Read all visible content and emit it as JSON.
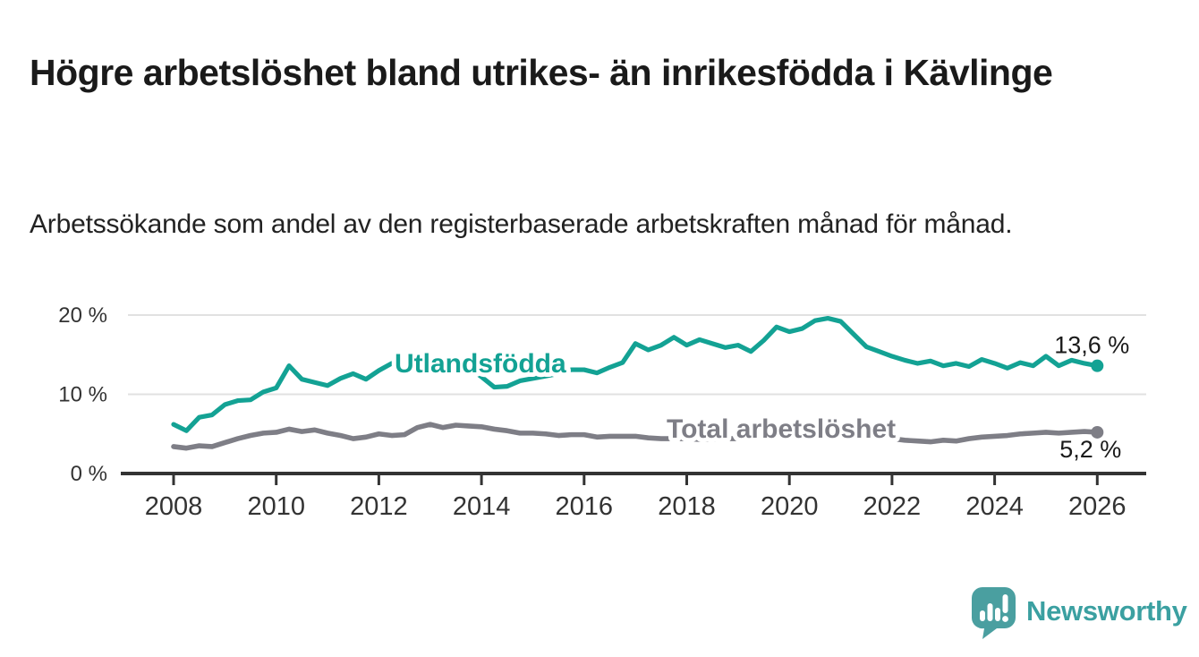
{
  "header": {
    "title": "Högre arbetslöshet bland utrikes- än inrikesfödda i Kävlinge",
    "subtitle": "Arbetssökande som andel av den registerbaserade arbetskraften månad för månad."
  },
  "chart_data": {
    "type": "line",
    "title": "Högre arbetslöshet bland utrikes- än inrikesfödda i Kävlinge",
    "subtitle": "Arbetssökande som andel av den registerbaserade arbetskraften månad för månad.",
    "unit_suffix": " %",
    "x_axis": {
      "ticks": [
        2008,
        2010,
        2012,
        2014,
        2016,
        2018,
        2020,
        2022,
        2024,
        2026
      ]
    },
    "y_axis": {
      "ticks": [
        {
          "value": 0,
          "label": "0 %"
        },
        {
          "value": 10,
          "label": "10 %"
        },
        {
          "value": 20,
          "label": "20 %"
        }
      ]
    },
    "xlim": [
      2007.05,
      2027.0
    ],
    "ylim": [
      0,
      21.3
    ],
    "grid": true,
    "legend_position": "inline-labels",
    "series": [
      {
        "name": "Total arbetslöshet",
        "color": "#7e7e86",
        "end_label": "5,2 %",
        "end_value": 5.2,
        "x_start": 2008,
        "x_step": 0.25,
        "values": [
          3.4,
          3.2,
          3.5,
          3.4,
          3.9,
          4.4,
          4.8,
          5.1,
          5.2,
          5.6,
          5.3,
          5.5,
          5.1,
          4.8,
          4.4,
          4.6,
          5.0,
          4.8,
          4.9,
          5.8,
          6.2,
          5.8,
          6.1,
          6.0,
          5.9,
          5.6,
          5.4,
          5.1,
          5.1,
          5.0,
          4.8,
          4.9,
          4.9,
          4.6,
          4.7,
          4.7,
          4.7,
          4.5,
          4.4,
          4.4,
          4.4,
          4.3,
          4.3,
          4.4,
          4.4,
          4.5,
          4.6,
          4.7,
          4.9,
          5.6,
          5.8,
          5.6,
          5.4,
          5.2,
          4.9,
          4.7,
          4.4,
          4.2,
          4.1,
          4.0,
          4.2,
          4.1,
          4.4,
          4.6,
          4.7,
          4.8,
          5.0,
          5.1,
          5.2,
          5.1,
          5.2,
          5.3,
          5.2
        ]
      },
      {
        "name": "Utlandsfödda",
        "color": "#13a294",
        "end_label": "13,6 %",
        "end_value": 13.6,
        "x_start": 2008,
        "x_step": 0.25,
        "values": [
          6.2,
          5.4,
          7.1,
          7.4,
          8.7,
          9.2,
          9.3,
          10.3,
          10.8,
          13.6,
          11.9,
          11.5,
          11.1,
          12.0,
          12.6,
          11.9,
          13.0,
          13.9,
          13.2,
          13.5,
          13.8,
          14.0,
          13.9,
          13.4,
          12.2,
          10.9,
          11.0,
          11.7,
          12.0,
          12.3,
          12.6,
          13.1,
          13.1,
          12.7,
          13.4,
          14.0,
          16.4,
          15.6,
          16.2,
          17.2,
          16.2,
          16.9,
          16.4,
          15.9,
          16.2,
          15.4,
          16.8,
          18.5,
          17.9,
          18.3,
          19.3,
          19.6,
          19.2,
          17.6,
          16.0,
          15.4,
          14.8,
          14.3,
          13.9,
          14.2,
          13.6,
          13.9,
          13.5,
          14.4,
          13.9,
          13.3,
          14.0,
          13.6,
          14.8,
          13.6,
          14.3,
          13.9,
          13.6
        ]
      }
    ]
  },
  "branding": {
    "name": "Newsworthy",
    "icon": "speech-bubble-bar-chart",
    "icon_color": "#4a9fa0",
    "text_color": "#3ba0a1"
  },
  "colors": {
    "background": "#ffffff",
    "axis": "#333333",
    "gridline": "#e1e1e1",
    "text": "#1a1a1a"
  }
}
